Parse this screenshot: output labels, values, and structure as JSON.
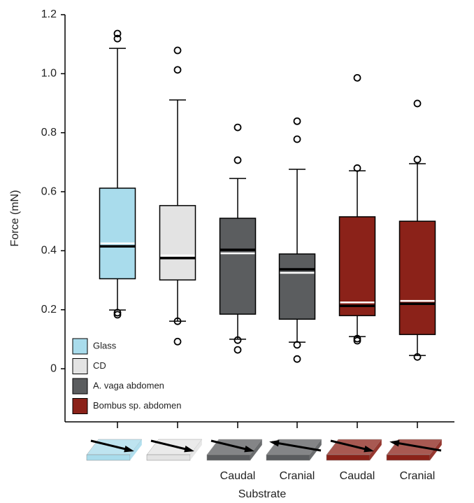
{
  "chart_data": {
    "type": "box",
    "y_label": "Force (mN)",
    "x_label": "Substrate",
    "ylim": [
      -0.18,
      1.2
    ],
    "yticks": [
      {
        "value": 0,
        "label": "0"
      },
      0.2,
      0.4,
      0.6,
      0.8,
      {
        "value": 1,
        "label": "1.0"
      },
      1.2
    ],
    "categories": [
      null,
      null,
      "Caudal",
      "Cranial",
      "Caudal",
      "Cranial"
    ],
    "legend": [
      {
        "name": "Glass",
        "color": "#a9dcec"
      },
      {
        "name": "CD",
        "color": "#e3e3e3"
      },
      {
        "name": "A. vaga abdomen",
        "color": "#5b5d5f"
      },
      {
        "name": "Bombus sp. abdomen",
        "color": "#8b2219"
      }
    ],
    "boxes": [
      {
        "color": "#a9dcec",
        "whisker_low": 0.199,
        "q1": 0.305,
        "median": 0.415,
        "mean": 0.425,
        "q3": 0.612,
        "whisker_high": 1.086,
        "outliers": [
          1.136,
          1.119,
          0.19,
          0.183
        ]
      },
      {
        "color": "#e3e3e3",
        "whisker_low": 0.161,
        "q1": 0.301,
        "median": 0.375,
        "mean": 0.384,
        "q3": 0.553,
        "whisker_high": 0.911,
        "outliers": [
          1.079,
          1.013,
          0.161,
          0.092
        ]
      },
      {
        "color": "#5b5d5f",
        "whisker_low": 0.1,
        "q1": 0.185,
        "median": 0.403,
        "mean": 0.391,
        "q3": 0.51,
        "whisker_high": 0.645,
        "outliers": [
          0.818,
          0.707,
          0.097,
          0.064
        ]
      },
      {
        "color": "#5b5d5f",
        "whisker_low": 0.09,
        "q1": 0.168,
        "median": 0.337,
        "mean": 0.325,
        "q3": 0.389,
        "whisker_high": 0.676,
        "outliers": [
          0.839,
          0.778,
          0.081,
          0.033
        ]
      },
      {
        "color": "#8b2219",
        "whisker_low": 0.109,
        "q1": 0.18,
        "median": 0.213,
        "mean": 0.225,
        "q3": 0.515,
        "whisker_high": 0.671,
        "outliers": [
          0.986,
          0.68,
          0.102,
          0.095
        ]
      },
      {
        "color": "#8b2219",
        "whisker_low": 0.045,
        "q1": 0.116,
        "median": 0.22,
        "mean": 0.23,
        "q3": 0.5,
        "whisker_high": 0.695,
        "outliers": [
          0.899,
          0.709,
          0.04
        ]
      }
    ]
  }
}
